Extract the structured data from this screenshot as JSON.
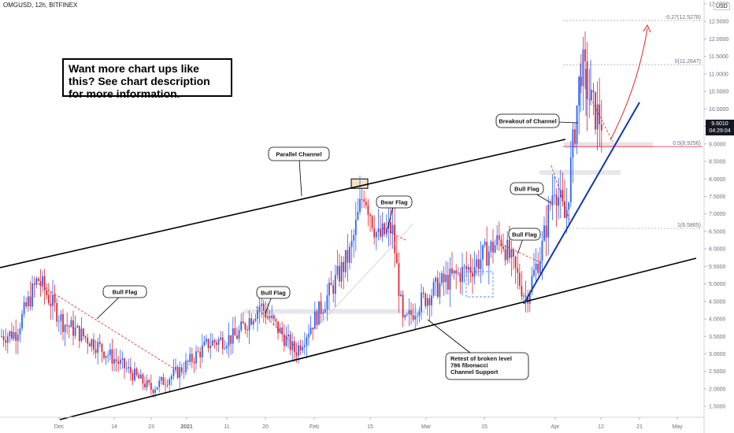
{
  "header": {
    "symbol_label": "OMGUSD, 12h, BITFINEX"
  },
  "currency_button": "USD",
  "current_price": {
    "price": "9.6010",
    "countdown": "04:29:04"
  },
  "promo": {
    "text": "Want more chart ups like this? See chart description for more information."
  },
  "colors": {
    "up": "#2962ff",
    "down": "#e0262f",
    "channel": "#000000",
    "trend": "#0d3aa9",
    "projection": "#e0262f"
  },
  "chart_data": {
    "type": "candlestick",
    "ylim": [
      1.2,
      13.0
    ],
    "yticks": [
      "1.5000",
      "2.0000",
      "2.5000",
      "3.0000",
      "3.5000",
      "4.0000",
      "4.5000",
      "5.0000",
      "5.5000",
      "6.0000",
      "6.5000",
      "7.0000",
      "7.5000",
      "8.0000",
      "8.5000",
      "9.0000",
      "9.5000",
      "10.0000",
      "10.5000",
      "11.0000",
      "11.5000",
      "12.0000",
      "12.5000",
      "13.0000"
    ],
    "xticks": [
      "Dec",
      "14",
      "23",
      "2021",
      "11",
      "20",
      "Feb",
      "15",
      "Mar",
      "15",
      "Apr",
      "12",
      "21",
      "May"
    ],
    "fibonacci": [
      {
        "label": "-0.27(12.5278)",
        "value": 12.5278
      },
      {
        "label": "0(11.2647)",
        "value": 11.2647
      },
      {
        "label": "0.5(8.9256)",
        "value": 8.9256
      },
      {
        "label": "1(6.5865)",
        "value": 6.5865
      }
    ],
    "callouts": [
      {
        "id": "bull-flag-1",
        "text": "Bull Flag"
      },
      {
        "id": "bull-flag-2",
        "text": "Bull Flag"
      },
      {
        "id": "bear-flag",
        "text": "Bear Flag"
      },
      {
        "id": "parallel-channel",
        "text": "Parallel Channel"
      },
      {
        "id": "bull-flag-3",
        "text": "Bull Flag"
      },
      {
        "id": "bull-flag-4",
        "text": "Bull Flag"
      },
      {
        "id": "breakout",
        "text": "Breakout of Channel"
      },
      {
        "id": "retest",
        "lines": [
          "Retest of broken level",
          "786 fibonacci",
          "Channel Support"
        ]
      }
    ],
    "key_points": [
      {
        "date": "Nov 28",
        "price": 5.15
      },
      {
        "date": "Dec 23",
        "price": 2.0
      },
      {
        "date": "Jan 18",
        "price": 4.4
      },
      {
        "date": "Feb 13",
        "price": 7.7
      },
      {
        "date": "Feb 22",
        "price": 3.8
      },
      {
        "date": "Mar 14",
        "price": 6.3
      },
      {
        "date": "Mar 24",
        "price": 4.6
      },
      {
        "date": "Apr 2",
        "price": 7.9
      },
      {
        "date": "Apr 8",
        "price": 11.3
      },
      {
        "date": "Apr 11",
        "price": 9.6
      }
    ]
  }
}
